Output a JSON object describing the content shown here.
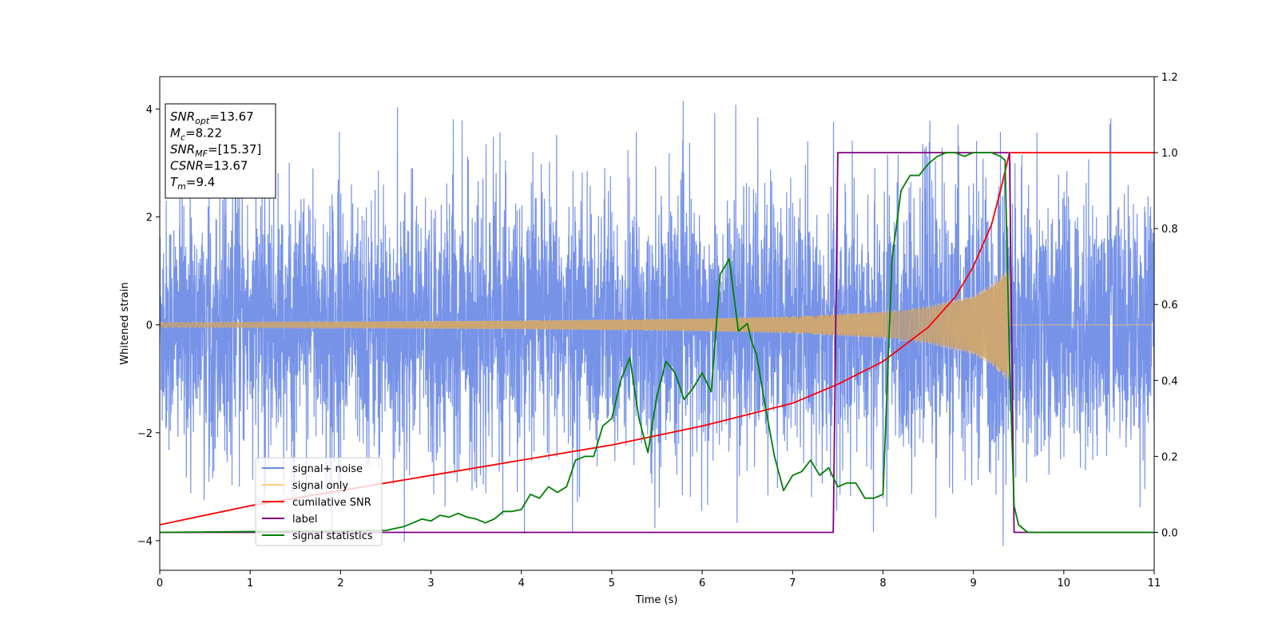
{
  "chart_data": {
    "type": "line",
    "title": "",
    "xlabel": "Time (s)",
    "ylabel": "Whitened strain",
    "xlim": [
      0,
      11
    ],
    "ylim_left": [
      -4.55,
      4.6
    ],
    "ylim_right": [
      -0.1,
      1.2
    ],
    "xticks": [
      "0",
      "1",
      "2",
      "3",
      "4",
      "5",
      "6",
      "7",
      "8",
      "9",
      "10",
      "11"
    ],
    "yticks_left": [
      "−4",
      "−2",
      "0",
      "2",
      "4"
    ],
    "yticks_right": [
      "0.0",
      "0.2",
      "0.4",
      "0.6",
      "0.8",
      "1.0",
      "1.2"
    ],
    "grid": false,
    "legend_placement": "lower-left",
    "annotation": [
      {
        "base": "SNR",
        "sub": "opt",
        "rest": "=13.67"
      },
      {
        "base": "M",
        "sub": "c",
        "rest": "=8.22"
      },
      {
        "base": "SNR",
        "sub": "MF",
        "rest": "=[15.37]"
      },
      {
        "base": "CSNR",
        "sub": "",
        "rest": "=13.67"
      },
      {
        "base": "T",
        "sub": "m",
        "rest": "=9.4"
      }
    ],
    "series": [
      {
        "name": "signal+ noise",
        "axis": "left",
        "color": "#6b8ae6",
        "description_values": {
          "amplitude_range": [
            -4.1,
            4.15
          ],
          "t_range": [
            0,
            11
          ]
        }
      },
      {
        "name": "signal only",
        "axis": "left",
        "color": "#f5c26b",
        "envelope": {
          "t": [
            0,
            2,
            4,
            6,
            7,
            8,
            8.5,
            9,
            9.2,
            9.35,
            9.4
          ],
          "amp": [
            0.05,
            0.06,
            0.08,
            0.12,
            0.16,
            0.25,
            0.35,
            0.55,
            0.75,
            1.0,
            1.05
          ]
        },
        "zero_after": 9.4
      },
      {
        "name": "cumilative SNR",
        "axis": "right",
        "color": "#ff0000",
        "x": [
          0,
          1,
          2,
          3,
          4,
          5,
          6,
          6.5,
          7,
          7.5,
          8,
          8.5,
          8.8,
          9,
          9.2,
          9.3,
          9.4,
          11
        ],
        "y": [
          0.02,
          0.07,
          0.11,
          0.15,
          0.19,
          0.23,
          0.28,
          0.31,
          0.34,
          0.39,
          0.45,
          0.54,
          0.62,
          0.7,
          0.81,
          0.9,
          1.0,
          1.0
        ]
      },
      {
        "name": "label",
        "axis": "right",
        "color": "#800080",
        "x": [
          0,
          7.45,
          7.5,
          9.4,
          9.45,
          11
        ],
        "y": [
          0,
          0,
          1,
          1,
          0,
          0
        ]
      },
      {
        "name": "signal statistics",
        "axis": "right",
        "color": "#008000",
        "x": [
          0,
          2.5,
          2.7,
          2.8,
          2.9,
          3.0,
          3.1,
          3.2,
          3.3,
          3.4,
          3.5,
          3.6,
          3.7,
          3.8,
          3.9,
          4.0,
          4.1,
          4.2,
          4.3,
          4.4,
          4.5,
          4.6,
          4.7,
          4.8,
          4.9,
          5.0,
          5.1,
          5.2,
          5.3,
          5.4,
          5.5,
          5.6,
          5.7,
          5.8,
          5.9,
          6.0,
          6.1,
          6.2,
          6.3,
          6.4,
          6.5,
          6.55,
          6.6,
          6.7,
          6.8,
          6.9,
          7.0,
          7.1,
          7.2,
          7.3,
          7.4,
          7.5,
          7.6,
          7.7,
          7.8,
          7.9,
          8.0,
          8.1,
          8.2,
          8.3,
          8.4,
          8.5,
          8.6,
          8.7,
          8.8,
          8.9,
          9.0,
          9.1,
          9.2,
          9.3,
          9.35,
          9.4,
          9.45,
          9.5,
          9.6,
          9.7,
          11
        ],
        "y": [
          0,
          0.005,
          0.015,
          0.025,
          0.035,
          0.03,
          0.045,
          0.04,
          0.05,
          0.04,
          0.035,
          0.025,
          0.035,
          0.055,
          0.055,
          0.06,
          0.1,
          0.09,
          0.12,
          0.105,
          0.12,
          0.19,
          0.2,
          0.2,
          0.28,
          0.3,
          0.4,
          0.46,
          0.3,
          0.21,
          0.36,
          0.45,
          0.42,
          0.35,
          0.38,
          0.42,
          0.37,
          0.68,
          0.72,
          0.53,
          0.55,
          0.5,
          0.47,
          0.33,
          0.2,
          0.11,
          0.15,
          0.16,
          0.19,
          0.15,
          0.17,
          0.12,
          0.13,
          0.13,
          0.09,
          0.09,
          0.1,
          0.72,
          0.9,
          0.94,
          0.94,
          0.97,
          0.99,
          1.0,
          1.0,
          0.99,
          1.0,
          1.0,
          1.0,
          0.99,
          0.98,
          0.45,
          0.07,
          0.02,
          0.0,
          0.0,
          0.0
        ]
      }
    ]
  }
}
